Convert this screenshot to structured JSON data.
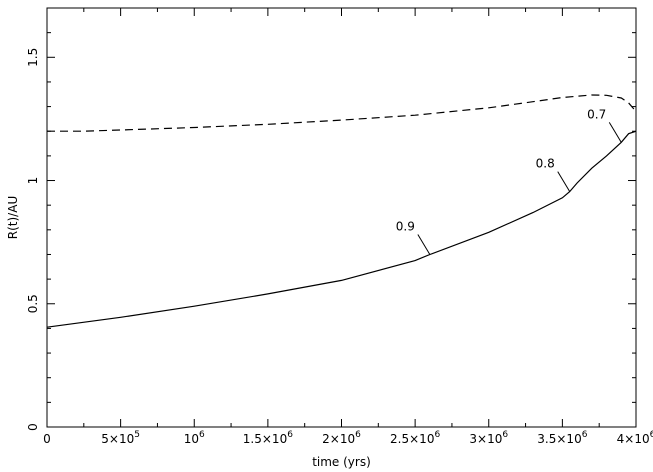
{
  "chart_data": {
    "type": "line",
    "title": "",
    "xlabel": "time (yrs)",
    "ylabel": "R(t)/AU",
    "xlim": [
      0,
      4000000
    ],
    "ylim": [
      0,
      1.7
    ],
    "grid": false,
    "x_ticks": [
      {
        "value": 0,
        "base": "0",
        "exp": ""
      },
      {
        "value": 500000,
        "base": "5×10",
        "exp": "5"
      },
      {
        "value": 1000000,
        "base": "10",
        "exp": "6"
      },
      {
        "value": 1500000,
        "base": "1.5×10",
        "exp": "6"
      },
      {
        "value": 2000000,
        "base": "2×10",
        "exp": "6"
      },
      {
        "value": 2500000,
        "base": "2.5×10",
        "exp": "6"
      },
      {
        "value": 3000000,
        "base": "3×10",
        "exp": "6"
      },
      {
        "value": 3500000,
        "base": "3.5×10",
        "exp": "6"
      },
      {
        "value": 4000000,
        "base": "4×10",
        "exp": "6"
      }
    ],
    "y_ticks": [
      {
        "value": 0,
        "label": "0"
      },
      {
        "value": 0.5,
        "label": "0.5"
      },
      {
        "value": 1,
        "label": "1"
      },
      {
        "value": 1.5,
        "label": "1.5"
      }
    ],
    "series": [
      {
        "style": "dashed",
        "x": [
          0,
          250000,
          500000,
          1000000,
          1500000,
          2000000,
          2500000,
          3000000,
          3300000,
          3500000,
          3700000,
          3800000,
          3900000,
          3950000,
          4000000
        ],
        "y": [
          1.2,
          1.2,
          1.205,
          1.215,
          1.228,
          1.245,
          1.265,
          1.295,
          1.32,
          1.337,
          1.347,
          1.346,
          1.335,
          1.315,
          1.28
        ]
      },
      {
        "style": "solid",
        "x": [
          0,
          500000,
          1000000,
          1500000,
          2000000,
          2500000,
          2600000,
          3000000,
          3300000,
          3500000,
          3550000,
          3600000,
          3700000,
          3800000,
          3900000,
          3950000,
          4000000
        ],
        "y": [
          0.405,
          0.445,
          0.49,
          0.54,
          0.595,
          0.675,
          0.7,
          0.79,
          0.87,
          0.93,
          0.955,
          0.99,
          1.05,
          1.1,
          1.155,
          1.19,
          1.2
        ]
      }
    ],
    "annotations": [
      {
        "text": "0.9",
        "x": 2600000,
        "y": 0.7
      },
      {
        "text": "0.8",
        "x": 3550000,
        "y": 0.955
      },
      {
        "text": "0.7",
        "x": 3900000,
        "y": 1.155
      }
    ]
  }
}
